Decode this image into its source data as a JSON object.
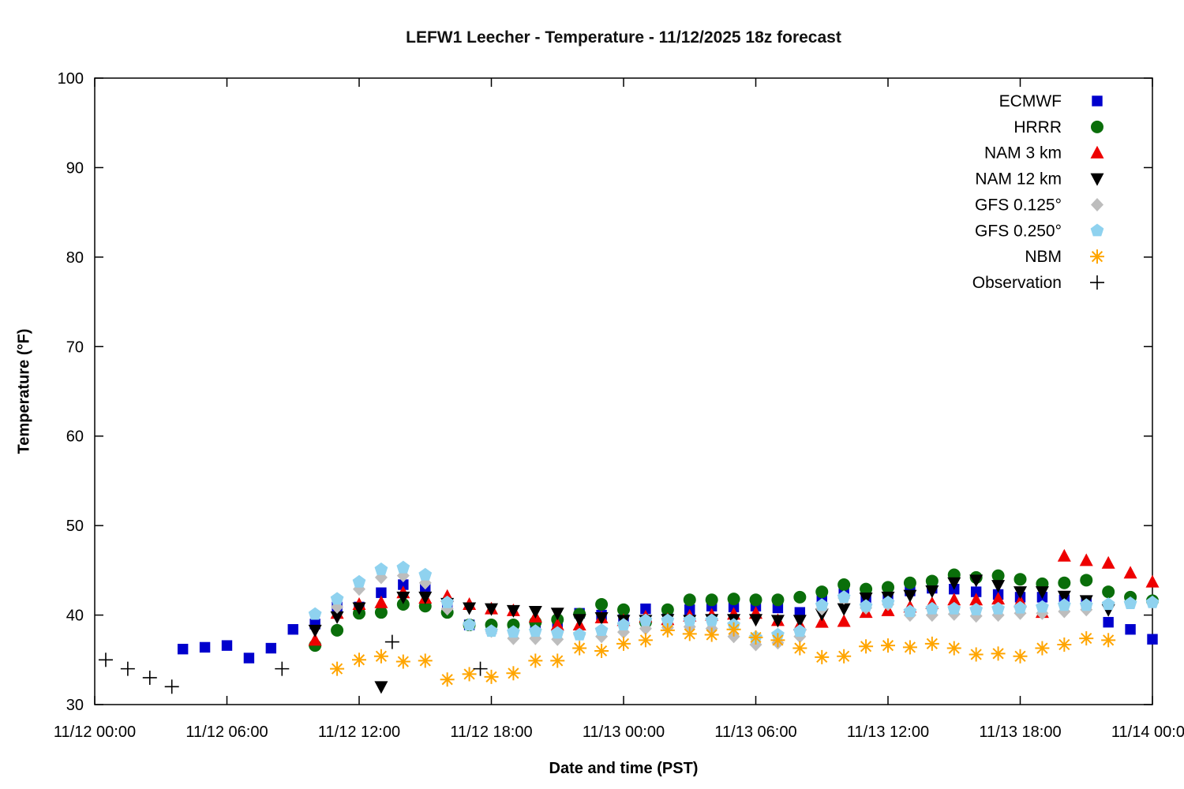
{
  "title": "LEFW1 Leecher - Temperature - 11/12/2025 18z forecast",
  "axes": {
    "x_label": "Date and time (PST)",
    "y_label": "Temperature (°F)"
  },
  "chart_data": {
    "type": "scatter",
    "title": "LEFW1 Leecher - Temperature - 11/12/2025 18z forecast",
    "xlabel": "Date and time (PST)",
    "ylabel": "Temperature (°F)",
    "x_unit": "hours since 11/12 00:00 PST",
    "xlim": [
      0,
      48
    ],
    "ylim": [
      30,
      100
    ],
    "grid": false,
    "legend_position": "top-right-inside",
    "y_ticks": [
      30,
      40,
      50,
      60,
      70,
      80,
      90,
      100
    ],
    "x_ticks": [
      {
        "t": 0,
        "label": "11/12 00:00"
      },
      {
        "t": 6,
        "label": "11/12 06:00"
      },
      {
        "t": 12,
        "label": "11/12 12:00"
      },
      {
        "t": 18,
        "label": "11/12 18:00"
      },
      {
        "t": 24,
        "label": "11/13 00:00"
      },
      {
        "t": 30,
        "label": "11/13 06:00"
      },
      {
        "t": 36,
        "label": "11/13 12:00"
      },
      {
        "t": 42,
        "label": "11/13 18:00"
      },
      {
        "t": 48,
        "label": "11/14 00:00"
      }
    ],
    "series": [
      {
        "id": "ecmwf",
        "name": "ECMWF",
        "marker": "square",
        "color": "#0000cd",
        "points": [
          [
            4,
            36.2
          ],
          [
            5,
            36.4
          ],
          [
            6,
            36.6
          ],
          [
            7,
            35.2
          ],
          [
            8,
            36.3
          ],
          [
            9,
            38.4
          ],
          [
            10,
            39.0
          ],
          [
            11,
            40.9
          ],
          [
            12,
            40.9
          ],
          [
            13,
            42.5
          ],
          [
            14,
            43.4
          ],
          [
            15,
            43.0
          ],
          [
            16,
            40.7
          ],
          [
            17,
            38.9
          ],
          [
            18,
            38.5
          ],
          [
            19,
            38.5
          ],
          [
            20,
            38.6
          ],
          [
            21,
            38.8
          ],
          [
            22,
            40.2
          ],
          [
            23,
            40.0
          ],
          [
            24,
            39.5
          ],
          [
            25,
            40.7
          ],
          [
            26,
            40.4
          ],
          [
            27,
            40.6
          ],
          [
            28,
            41.0
          ],
          [
            29,
            40.9
          ],
          [
            30,
            41.0
          ],
          [
            31,
            40.8
          ],
          [
            32,
            40.3
          ],
          [
            33,
            41.7
          ],
          [
            34,
            42.6
          ],
          [
            35,
            41.9
          ],
          [
            36,
            42.0
          ],
          [
            37,
            42.7
          ],
          [
            38,
            43.0
          ],
          [
            39,
            42.9
          ],
          [
            40,
            42.6
          ],
          [
            41,
            42.3
          ],
          [
            42,
            42.0
          ],
          [
            43,
            42.0
          ],
          [
            44,
            41.7
          ],
          [
            45,
            41.4
          ],
          [
            46,
            39.2
          ],
          [
            47,
            38.4
          ],
          [
            48,
            37.3
          ]
        ]
      },
      {
        "id": "hrrr",
        "name": "HRRR",
        "marker": "circle",
        "color": "#0a6e0a",
        "points": [
          [
            10,
            36.6
          ],
          [
            11,
            38.3
          ],
          [
            12,
            40.2
          ],
          [
            13,
            40.3
          ],
          [
            14,
            41.2
          ],
          [
            15,
            41.0
          ],
          [
            16,
            40.3
          ],
          [
            17,
            38.9
          ],
          [
            18,
            38.9
          ],
          [
            19,
            38.9
          ],
          [
            20,
            39.2
          ],
          [
            21,
            39.5
          ],
          [
            22,
            40.1
          ],
          [
            23,
            41.2
          ],
          [
            24,
            40.6
          ],
          [
            25,
            39.2
          ],
          [
            26,
            40.6
          ],
          [
            27,
            41.7
          ],
          [
            28,
            41.7
          ],
          [
            29,
            41.8
          ],
          [
            30,
            41.7
          ],
          [
            31,
            41.7
          ],
          [
            32,
            42.0
          ],
          [
            33,
            42.6
          ],
          [
            34,
            43.4
          ],
          [
            35,
            42.9
          ],
          [
            36,
            43.1
          ],
          [
            37,
            43.6
          ],
          [
            38,
            43.8
          ],
          [
            39,
            44.5
          ],
          [
            40,
            44.2
          ],
          [
            41,
            44.4
          ],
          [
            42,
            44.0
          ],
          [
            43,
            43.5
          ],
          [
            44,
            43.6
          ],
          [
            45,
            43.9
          ],
          [
            46,
            42.6
          ],
          [
            47,
            42.0
          ],
          [
            48,
            41.6
          ]
        ]
      },
      {
        "id": "nam-3km",
        "name": "NAM 3 km",
        "marker": "triangle-up",
        "color": "#ee0000",
        "points": [
          [
            10,
            37.2
          ],
          [
            11,
            40.2
          ],
          [
            12,
            41.2
          ],
          [
            13,
            41.4
          ],
          [
            14,
            42.5
          ],
          [
            15,
            41.9
          ],
          [
            16,
            42.1
          ],
          [
            17,
            41.2
          ],
          [
            18,
            40.7
          ],
          [
            19,
            40.5
          ],
          [
            20,
            39.8
          ],
          [
            21,
            38.9
          ],
          [
            22,
            38.9
          ],
          [
            23,
            39.7
          ],
          [
            24,
            39.4
          ],
          [
            25,
            39.8
          ],
          [
            26,
            39.5
          ],
          [
            27,
            39.9
          ],
          [
            28,
            40.0
          ],
          [
            29,
            40.1
          ],
          [
            30,
            40.2
          ],
          [
            31,
            39.4
          ],
          [
            32,
            38.9
          ],
          [
            33,
            39.2
          ],
          [
            34,
            39.3
          ],
          [
            35,
            40.3
          ],
          [
            36,
            40.5
          ],
          [
            37,
            40.9
          ],
          [
            38,
            41.3
          ],
          [
            39,
            41.7
          ],
          [
            40,
            41.7
          ],
          [
            41,
            41.8
          ],
          [
            42,
            41.5
          ],
          [
            43,
            40.3
          ],
          [
            44,
            46.6
          ],
          [
            45,
            46.1
          ],
          [
            46,
            45.8
          ],
          [
            47,
            44.7
          ],
          [
            48,
            43.7
          ]
        ]
      },
      {
        "id": "nam-12km",
        "name": "NAM 12 km",
        "marker": "triangle-down",
        "color": "#000000",
        "points": [
          [
            10,
            38.3
          ],
          [
            11,
            39.8
          ],
          [
            12,
            40.8
          ],
          [
            13,
            32.0
          ],
          [
            14,
            42.0
          ],
          [
            15,
            42.0
          ],
          [
            16,
            41.3
          ],
          [
            17,
            40.8
          ],
          [
            18,
            40.7
          ],
          [
            19,
            40.5
          ],
          [
            20,
            40.4
          ],
          [
            21,
            40.2
          ],
          [
            22,
            39.5
          ],
          [
            23,
            39.7
          ],
          [
            24,
            39.4
          ],
          [
            25,
            39.4
          ],
          [
            26,
            39.5
          ],
          [
            27,
            39.4
          ],
          [
            28,
            39.5
          ],
          [
            29,
            39.5
          ],
          [
            30,
            39.5
          ],
          [
            31,
            39.4
          ],
          [
            32,
            39.4
          ],
          [
            33,
            40.1
          ],
          [
            34,
            40.7
          ],
          [
            35,
            41.9
          ],
          [
            36,
            42.0
          ],
          [
            37,
            42.2
          ],
          [
            38,
            42.7
          ],
          [
            39,
            43.6
          ],
          [
            40,
            43.9
          ],
          [
            41,
            43.3
          ],
          [
            42,
            42.6
          ],
          [
            43,
            42.6
          ],
          [
            44,
            42.1
          ],
          [
            45,
            41.6
          ],
          [
            46,
            40.6
          ]
        ]
      },
      {
        "id": "gfs-0125",
        "name": "GFS 0.125°",
        "marker": "diamond",
        "color": "#bdbdbd",
        "points": [
          [
            11,
            40.9
          ],
          [
            12,
            42.9
          ],
          [
            13,
            44.2
          ],
          [
            14,
            44.4
          ],
          [
            15,
            43.6
          ],
          [
            16,
            40.7
          ],
          [
            17,
            38.9
          ],
          [
            18,
            38.2
          ],
          [
            19,
            37.4
          ],
          [
            20,
            37.4
          ],
          [
            21,
            37.3
          ],
          [
            22,
            37.8
          ],
          [
            23,
            37.6
          ],
          [
            24,
            38.1
          ],
          [
            25,
            38.5
          ],
          [
            26,
            38.6
          ],
          [
            27,
            38.7
          ],
          [
            28,
            38.5
          ],
          [
            29,
            37.6
          ],
          [
            30,
            36.7
          ],
          [
            31,
            36.9
          ],
          [
            32,
            37.6
          ],
          [
            33,
            40.7
          ],
          [
            34,
            41.9
          ],
          [
            35,
            40.8
          ],
          [
            36,
            41.2
          ],
          [
            37,
            40.0
          ],
          [
            38,
            40.0
          ],
          [
            39,
            40.1
          ],
          [
            40,
            39.9
          ],
          [
            41,
            40.0
          ],
          [
            42,
            40.2
          ],
          [
            43,
            40.2
          ],
          [
            44,
            40.4
          ],
          [
            45,
            40.6
          ]
        ]
      },
      {
        "id": "gfs-0250",
        "name": "GFS 0.250°",
        "marker": "pentagon",
        "color": "#8fd2ef",
        "points": [
          [
            10,
            40.1
          ],
          [
            11,
            41.8
          ],
          [
            12,
            43.7
          ],
          [
            13,
            45.1
          ],
          [
            14,
            45.3
          ],
          [
            15,
            44.5
          ],
          [
            16,
            41.4
          ],
          [
            17,
            38.9
          ],
          [
            18,
            38.2
          ],
          [
            19,
            38.1
          ],
          [
            20,
            38.2
          ],
          [
            21,
            38.0
          ],
          [
            22,
            37.8
          ],
          [
            23,
            38.3
          ],
          [
            24,
            38.9
          ],
          [
            25,
            39.4
          ],
          [
            26,
            39.4
          ],
          [
            27,
            39.4
          ],
          [
            28,
            39.4
          ],
          [
            29,
            38.9
          ],
          [
            30,
            37.5
          ],
          [
            31,
            37.8
          ],
          [
            32,
            38.2
          ],
          [
            33,
            41.1
          ],
          [
            34,
            42.0
          ],
          [
            35,
            41.0
          ],
          [
            36,
            41.4
          ],
          [
            37,
            40.4
          ],
          [
            38,
            40.7
          ],
          [
            39,
            40.7
          ],
          [
            40,
            40.6
          ],
          [
            41,
            40.7
          ],
          [
            42,
            40.8
          ],
          [
            43,
            40.9
          ],
          [
            44,
            41.1
          ],
          [
            45,
            41.1
          ],
          [
            46,
            41.2
          ],
          [
            47,
            41.3
          ],
          [
            48,
            41.4
          ]
        ]
      },
      {
        "id": "nbm",
        "name": "NBM",
        "marker": "asterisk",
        "color": "#ffa500",
        "points": [
          [
            11,
            34.0
          ],
          [
            12,
            35.0
          ],
          [
            13,
            35.4
          ],
          [
            14,
            34.8
          ],
          [
            15,
            34.9
          ],
          [
            16,
            32.8
          ],
          [
            17,
            33.4
          ],
          [
            18,
            33.1
          ],
          [
            19,
            33.5
          ],
          [
            20,
            34.9
          ],
          [
            21,
            34.9
          ],
          [
            22,
            36.3
          ],
          [
            23,
            36.0
          ],
          [
            24,
            36.8
          ],
          [
            25,
            37.2
          ],
          [
            26,
            38.3
          ],
          [
            27,
            37.9
          ],
          [
            28,
            37.8
          ],
          [
            29,
            38.4
          ],
          [
            30,
            37.5
          ],
          [
            31,
            37.2
          ],
          [
            32,
            36.3
          ],
          [
            33,
            35.3
          ],
          [
            34,
            35.4
          ],
          [
            35,
            36.5
          ],
          [
            36,
            36.6
          ],
          [
            37,
            36.4
          ],
          [
            38,
            36.8
          ],
          [
            39,
            36.3
          ],
          [
            40,
            35.6
          ],
          [
            41,
            35.7
          ],
          [
            42,
            35.4
          ],
          [
            43,
            36.3
          ],
          [
            44,
            36.7
          ],
          [
            45,
            37.4
          ],
          [
            46,
            37.2
          ]
        ]
      },
      {
        "id": "observation",
        "name": "Observation",
        "marker": "plus",
        "color": "#000000",
        "points": [
          [
            0.5,
            35.0
          ],
          [
            1.5,
            34.0
          ],
          [
            2.5,
            33.0
          ],
          [
            3.5,
            32.0
          ],
          [
            8.5,
            34.0
          ],
          [
            13.5,
            37.0
          ],
          [
            17.5,
            34.0
          ]
        ]
      }
    ]
  }
}
